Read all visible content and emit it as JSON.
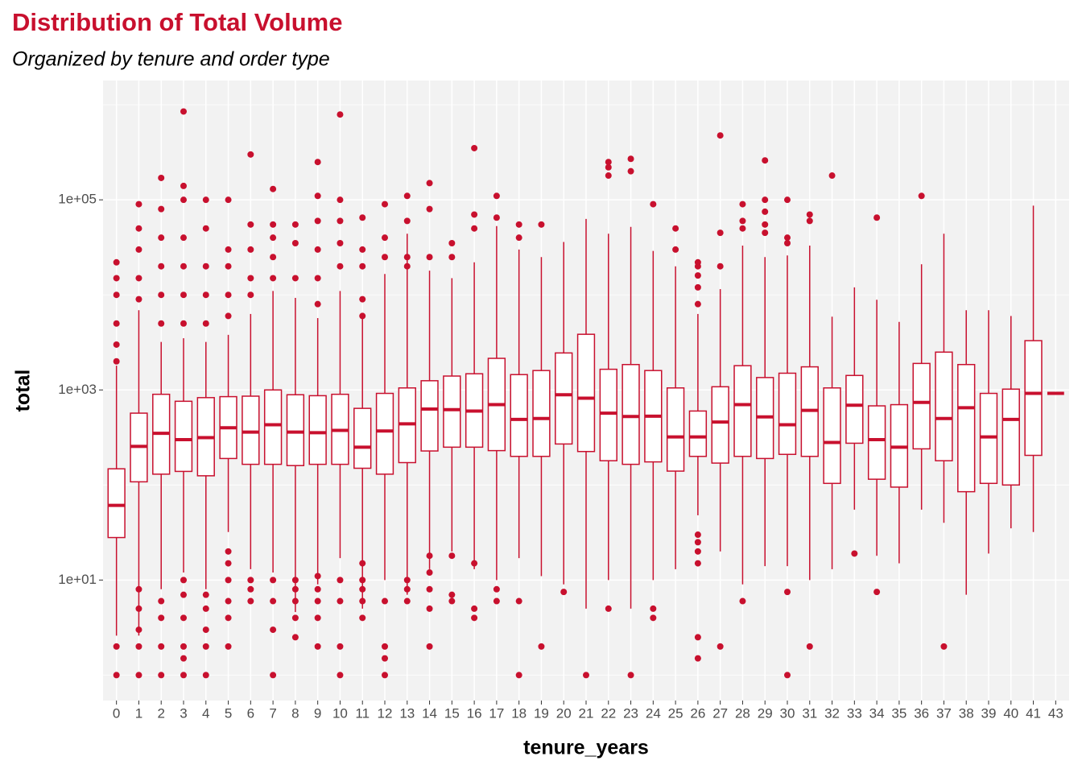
{
  "chart_data": {
    "type": "boxplot",
    "title": "Distribution of Total Volume",
    "subtitle": "Organized by tenure and order type",
    "x_label": "tenure_years",
    "y_label": "total",
    "color": "#C8102E",
    "log_scale": true,
    "grid": true,
    "ylim": [
      0.54,
      1800000
    ],
    "yticks": [
      {
        "value": 10,
        "label": "1e+01"
      },
      {
        "value": 1000,
        "label": "1e+03"
      },
      {
        "value": 100000,
        "label": "1e+05"
      }
    ],
    "y_minor_grid": [
      1,
      100,
      10000,
      1000000
    ],
    "categories": [
      "0",
      "1",
      "2",
      "3",
      "4",
      "5",
      "6",
      "7",
      "8",
      "9",
      "10",
      "11",
      "12",
      "13",
      "14",
      "15",
      "16",
      "17",
      "18",
      "19",
      "20",
      "21",
      "22",
      "23",
      "24",
      "25",
      "26",
      "27",
      "28",
      "29",
      "30",
      "31",
      "32",
      "33",
      "34",
      "35",
      "36",
      "37",
      "38",
      "39",
      "40",
      "41",
      "43"
    ],
    "boxes": [
      {
        "min": 2.6,
        "q1": 28,
        "median": 61,
        "q3": 148,
        "max": 1800,
        "outliers": [
          1,
          2,
          2000,
          3000,
          5000,
          10000,
          15000,
          22000
        ]
      },
      {
        "min": 2.6,
        "q1": 108,
        "median": 255,
        "q3": 570,
        "max": 6900,
        "outliers": [
          1,
          2,
          3,
          5,
          8,
          9000,
          15000,
          30000,
          50000,
          90000
        ]
      },
      {
        "min": 8,
        "q1": 130,
        "median": 350,
        "q3": 900,
        "max": 3200,
        "outliers": [
          1,
          2,
          4,
          6,
          5000,
          10000,
          20000,
          40000,
          80000,
          170000
        ]
      },
      {
        "min": 12,
        "q1": 139,
        "median": 300,
        "q3": 760,
        "max": 3500,
        "outliers": [
          1,
          1.5,
          2,
          4,
          7,
          10,
          5000,
          10000,
          20000,
          40000,
          100000,
          140000,
          850000
        ]
      },
      {
        "min": 8,
        "q1": 125,
        "median": 315,
        "q3": 830,
        "max": 3200,
        "outliers": [
          1,
          2,
          3,
          5,
          7,
          5000,
          10000,
          20000,
          50000,
          100000
        ]
      },
      {
        "min": 32,
        "q1": 190,
        "median": 400,
        "q3": 850,
        "max": 3800,
        "outliers": [
          2,
          4,
          6,
          10,
          15,
          20,
          6000,
          10000,
          20000,
          30000,
          100000
        ]
      },
      {
        "min": 13,
        "q1": 165,
        "median": 360,
        "q3": 860,
        "max": 6300,
        "outliers": [
          6,
          8,
          10,
          10000,
          15000,
          30000,
          55000,
          300000
        ]
      },
      {
        "min": 12,
        "q1": 165,
        "median": 430,
        "q3": 1000,
        "max": 11000,
        "outliers": [
          1,
          3,
          6,
          10,
          15000,
          25000,
          40000,
          55000,
          130000
        ]
      },
      {
        "min": 4.6,
        "q1": 160,
        "median": 360,
        "q3": 890,
        "max": 9300,
        "outliers": [
          2.5,
          4,
          6,
          8,
          10,
          15000,
          35000,
          55000
        ]
      },
      {
        "min": 9,
        "q1": 165,
        "median": 355,
        "q3": 870,
        "max": 5700,
        "outliers": [
          2,
          4,
          6,
          8,
          11,
          8000,
          15000,
          30000,
          60000,
          110000,
          250000
        ]
      },
      {
        "min": 17,
        "q1": 165,
        "median": 375,
        "q3": 900,
        "max": 11000,
        "outliers": [
          1,
          2,
          6,
          10,
          20000,
          35000,
          60000,
          100000,
          790000
        ]
      },
      {
        "min": 5,
        "q1": 150,
        "median": 250,
        "q3": 640,
        "max": 5700,
        "outliers": [
          4,
          6,
          8,
          10,
          15,
          6000,
          9000,
          20000,
          30000,
          65000
        ]
      },
      {
        "min": 10,
        "q1": 130,
        "median": 370,
        "q3": 920,
        "max": 16600,
        "outliers": [
          1,
          1.5,
          2,
          6,
          25000,
          40000,
          90000
        ]
      },
      {
        "min": 7,
        "q1": 172,
        "median": 440,
        "q3": 1050,
        "max": 44000,
        "outliers": [
          6,
          8,
          10,
          20000,
          25000,
          60000,
          110000
        ]
      },
      {
        "min": 13,
        "q1": 228,
        "median": 630,
        "q3": 1250,
        "max": 18000,
        "outliers": [
          2,
          5,
          8,
          12,
          18,
          25000,
          80000,
          150000
        ]
      },
      {
        "min": 20,
        "q1": 250,
        "median": 620,
        "q3": 1400,
        "max": 15000,
        "outliers": [
          6,
          7,
          18,
          25000,
          35000
        ]
      },
      {
        "min": 13,
        "q1": 250,
        "median": 600,
        "q3": 1480,
        "max": 22000,
        "outliers": [
          4,
          5,
          15,
          50000,
          70000,
          350000
        ]
      },
      {
        "min": 10,
        "q1": 230,
        "median": 700,
        "q3": 2150,
        "max": 53000,
        "outliers": [
          6,
          8,
          65000,
          110000
        ]
      },
      {
        "min": 17,
        "q1": 200,
        "median": 490,
        "q3": 1450,
        "max": 30000,
        "outliers": [
          1,
          6,
          40000,
          55000
        ]
      },
      {
        "min": 11,
        "q1": 200,
        "median": 500,
        "q3": 1600,
        "max": 25000,
        "outliers": [
          2,
          55000
        ]
      },
      {
        "min": 9,
        "q1": 270,
        "median": 890,
        "q3": 2450,
        "max": 36000,
        "outliers": [
          7.5
        ]
      },
      {
        "min": 5,
        "q1": 225,
        "median": 820,
        "q3": 3850,
        "max": 63000,
        "outliers": [
          1
        ]
      },
      {
        "min": 10,
        "q1": 180,
        "median": 570,
        "q3": 1650,
        "max": 44000,
        "outliers": [
          5,
          180000,
          220000,
          250000
        ]
      },
      {
        "min": 5,
        "q1": 165,
        "median": 525,
        "q3": 1850,
        "max": 52000,
        "outliers": [
          1,
          200000,
          270000
        ]
      },
      {
        "min": 10,
        "q1": 175,
        "median": 530,
        "q3": 1600,
        "max": 29000,
        "outliers": [
          4,
          5,
          90000
        ]
      },
      {
        "min": 13,
        "q1": 140,
        "median": 320,
        "q3": 1050,
        "max": 20000,
        "outliers": [
          30000,
          50000
        ]
      },
      {
        "min": 48,
        "q1": 200,
        "median": 320,
        "q3": 600,
        "max": 6300,
        "outliers": [
          1.5,
          2.5,
          15,
          20,
          25,
          30,
          8000,
          12000,
          16000,
          20000,
          22000
        ]
      },
      {
        "min": 20,
        "q1": 170,
        "median": 460,
        "q3": 1080,
        "max": 11500,
        "outliers": [
          2,
          20000,
          45000,
          476000
        ]
      },
      {
        "min": 9,
        "q1": 200,
        "median": 700,
        "q3": 1800,
        "max": 33000,
        "outliers": [
          6,
          50000,
          60000,
          90000
        ]
      },
      {
        "min": 14,
        "q1": 190,
        "median": 520,
        "q3": 1350,
        "max": 25000,
        "outliers": [
          45000,
          55000,
          75000,
          100000,
          260000
        ]
      },
      {
        "min": 14,
        "q1": 210,
        "median": 430,
        "q3": 1500,
        "max": 26000,
        "outliers": [
          1,
          7.5,
          35000,
          40000,
          100000
        ]
      },
      {
        "min": 10,
        "q1": 200,
        "median": 610,
        "q3": 1750,
        "max": 33000,
        "outliers": [
          2,
          60000,
          70000
        ]
      },
      {
        "min": 13,
        "q1": 104,
        "median": 280,
        "q3": 1050,
        "max": 5900,
        "outliers": [
          180000
        ]
      },
      {
        "min": 55,
        "q1": 275,
        "median": 690,
        "q3": 1420,
        "max": 12000,
        "outliers": [
          19
        ]
      },
      {
        "min": 18,
        "q1": 115,
        "median": 300,
        "q3": 680,
        "max": 8900,
        "outliers": [
          7.5,
          65000
        ]
      },
      {
        "min": 15,
        "q1": 95,
        "median": 250,
        "q3": 700,
        "max": 5200,
        "outliers": []
      },
      {
        "min": 55,
        "q1": 240,
        "median": 740,
        "q3": 1900,
        "max": 21000,
        "outliers": [
          110000
        ]
      },
      {
        "min": 40,
        "q1": 180,
        "median": 500,
        "q3": 2500,
        "max": 44000,
        "outliers": [
          2
        ]
      },
      {
        "min": 7,
        "q1": 85,
        "median": 650,
        "q3": 1850,
        "max": 6900,
        "outliers": []
      },
      {
        "min": 19,
        "q1": 104,
        "median": 320,
        "q3": 920,
        "max": 6900,
        "outliers": []
      },
      {
        "min": 35,
        "q1": 100,
        "median": 490,
        "q3": 1020,
        "max": 6000,
        "outliers": []
      },
      {
        "min": 32,
        "q1": 205,
        "median": 920,
        "q3": 3300,
        "max": 87000,
        "outliers": []
      },
      {
        "min": 920,
        "q1": 920,
        "median": 920,
        "q3": 920,
        "max": 920,
        "outliers": []
      }
    ]
  }
}
